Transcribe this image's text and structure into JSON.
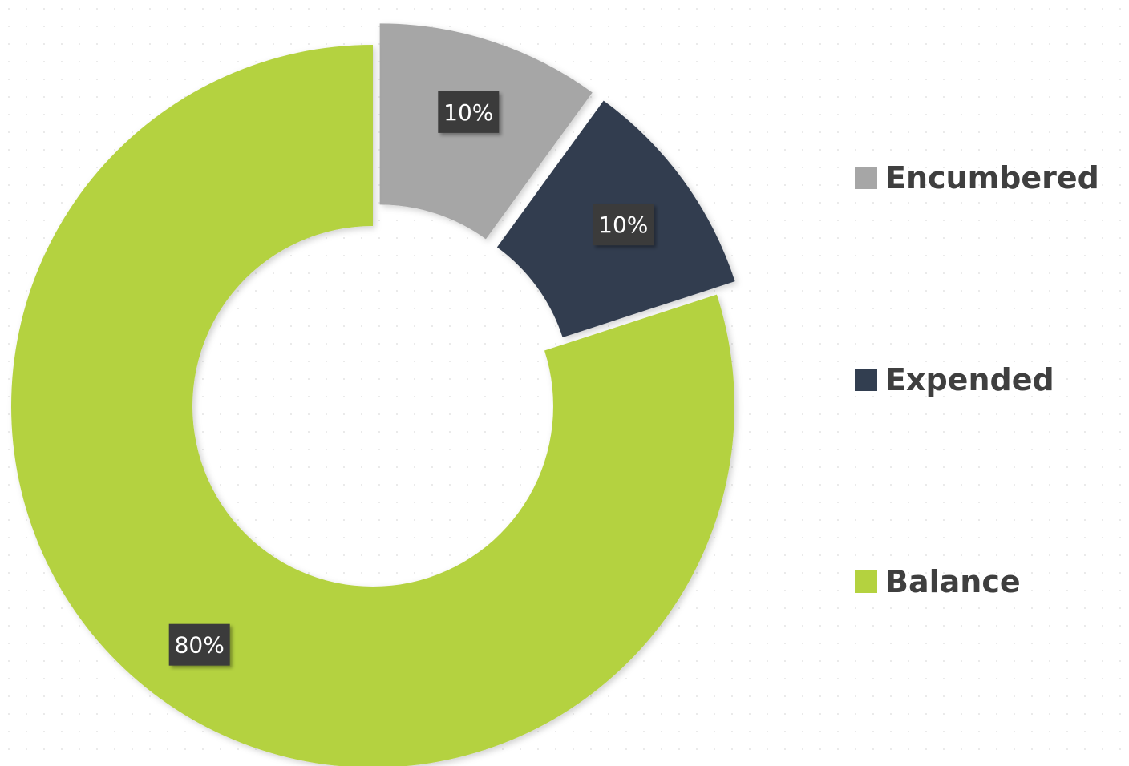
{
  "chart_data": {
    "type": "donut",
    "categories": [
      "Encumbered",
      "Expended",
      "Balance"
    ],
    "values": [
      10,
      10,
      80
    ],
    "labels": [
      "10%",
      "10%",
      "80%"
    ],
    "colors": [
      "#a6a6a6",
      "#323e50",
      "#b4d23f"
    ],
    "exploded": [
      true,
      true,
      false
    ],
    "legend_position": "right"
  }
}
